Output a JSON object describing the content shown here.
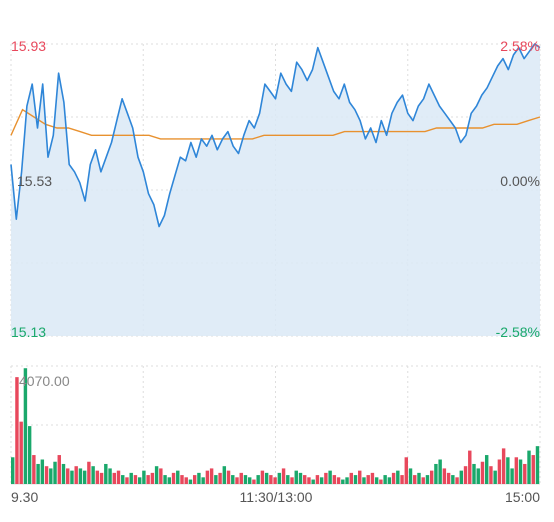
{
  "chart_data": [
    {
      "type": "line",
      "name_note": "",
      "price_axis": {
        "top_left": "15.93",
        "mid_left": "15.53",
        "bottom_left": "15.13",
        "top_right": "2.58%",
        "mid_right": "0.00%",
        "bottom_right": "-2.58%",
        "ylim": [
          15.13,
          15.93
        ]
      },
      "series": [
        {
          "key": "price",
          "color": "#2f86d8",
          "fill": "#dbe9f6",
          "values": [
            15.6,
            15.45,
            15.58,
            15.76,
            15.82,
            15.7,
            15.82,
            15.62,
            15.68,
            15.85,
            15.77,
            15.6,
            15.58,
            15.55,
            15.5,
            15.6,
            15.64,
            15.58,
            15.62,
            15.66,
            15.72,
            15.78,
            15.74,
            15.7,
            15.62,
            15.58,
            15.52,
            15.49,
            15.43,
            15.46,
            15.52,
            15.57,
            15.62,
            15.61,
            15.66,
            15.62,
            15.67,
            15.65,
            15.68,
            15.64,
            15.67,
            15.69,
            15.65,
            15.63,
            15.68,
            15.72,
            15.7,
            15.74,
            15.82,
            15.8,
            15.78,
            15.85,
            15.82,
            15.8,
            15.88,
            15.86,
            15.83,
            15.86,
            15.92,
            15.88,
            15.84,
            15.8,
            15.78,
            15.82,
            15.77,
            15.75,
            15.72,
            15.67,
            15.7,
            15.66,
            15.72,
            15.68,
            15.74,
            15.77,
            15.79,
            15.74,
            15.72,
            15.76,
            15.78,
            15.82,
            15.79,
            15.76,
            15.74,
            15.72,
            15.7,
            15.66,
            15.68,
            15.74,
            15.76,
            15.79,
            15.81,
            15.84,
            15.87,
            15.89,
            15.86,
            15.9,
            15.92,
            15.89,
            15.91,
            15.93,
            15.92
          ],
          "name": ""
        },
        {
          "key": "average",
          "color": "#e8912f",
          "values": [
            15.68,
            15.75,
            15.73,
            15.71,
            15.7,
            15.7,
            15.69,
            15.68,
            15.68,
            15.68,
            15.68,
            15.68,
            15.68,
            15.67,
            15.67,
            15.67,
            15.67,
            15.67,
            15.67,
            15.67,
            15.67,
            15.67,
            15.68,
            15.68,
            15.68,
            15.68,
            15.68,
            15.68,
            15.68,
            15.69,
            15.69,
            15.69,
            15.69,
            15.69,
            15.69,
            15.69,
            15.69,
            15.7,
            15.7,
            15.7,
            15.7,
            15.7,
            15.71,
            15.71,
            15.71,
            15.72,
            15.73
          ],
          "name": ""
        }
      ],
      "grid": true
    },
    {
      "type": "bar",
      "volume_label": "4070.00",
      "ylim": [
        0,
        5300
      ],
      "colors": {
        "up": "#e8485c",
        "down": "#1aa86b"
      },
      "values": [
        1200,
        4800,
        2800,
        5200,
        2600,
        1300,
        900,
        1100,
        800,
        700,
        1000,
        1300,
        900,
        700,
        600,
        800,
        700,
        600,
        1000,
        800,
        600,
        500,
        900,
        700,
        500,
        600,
        400,
        300,
        500,
        400,
        300,
        600,
        400,
        500,
        800,
        700,
        400,
        300,
        500,
        600,
        400,
        300,
        200,
        400,
        500,
        300,
        600,
        700,
        400,
        500,
        800,
        600,
        400,
        300,
        500,
        400,
        300,
        200,
        400,
        600,
        500,
        400,
        300,
        500,
        700,
        400,
        300,
        600,
        500,
        400,
        300,
        200,
        400,
        300,
        500,
        600,
        400,
        300,
        200,
        300,
        500,
        400,
        600,
        300,
        400,
        500,
        300,
        200,
        400,
        300,
        500,
        600,
        400,
        1200,
        700,
        400,
        500,
        300,
        400,
        600,
        900,
        1100,
        700,
        500,
        400,
        300,
        600,
        800,
        1500,
        900,
        700,
        1000,
        1300,
        800,
        600,
        1100,
        1600,
        1200,
        700,
        1200,
        1100,
        900,
        1500,
        1300,
        1700
      ],
      "directions": "DUUDDUDDUDDUDUDUDDUDUUDDUUDUDUDDUUDUDDUDUUDUDDUUDUDUDUUDDUDUDUUDUDUDDUUDUDUDUUDDUDUDUUDUDDUDUUDUDUDUDDUUDUDUUDDUDUDUUDDUDUDUD",
      "grid": true
    }
  ],
  "time_axis": {
    "start": "9.30",
    "mid": "11:30/13:00",
    "end": "15:00"
  }
}
